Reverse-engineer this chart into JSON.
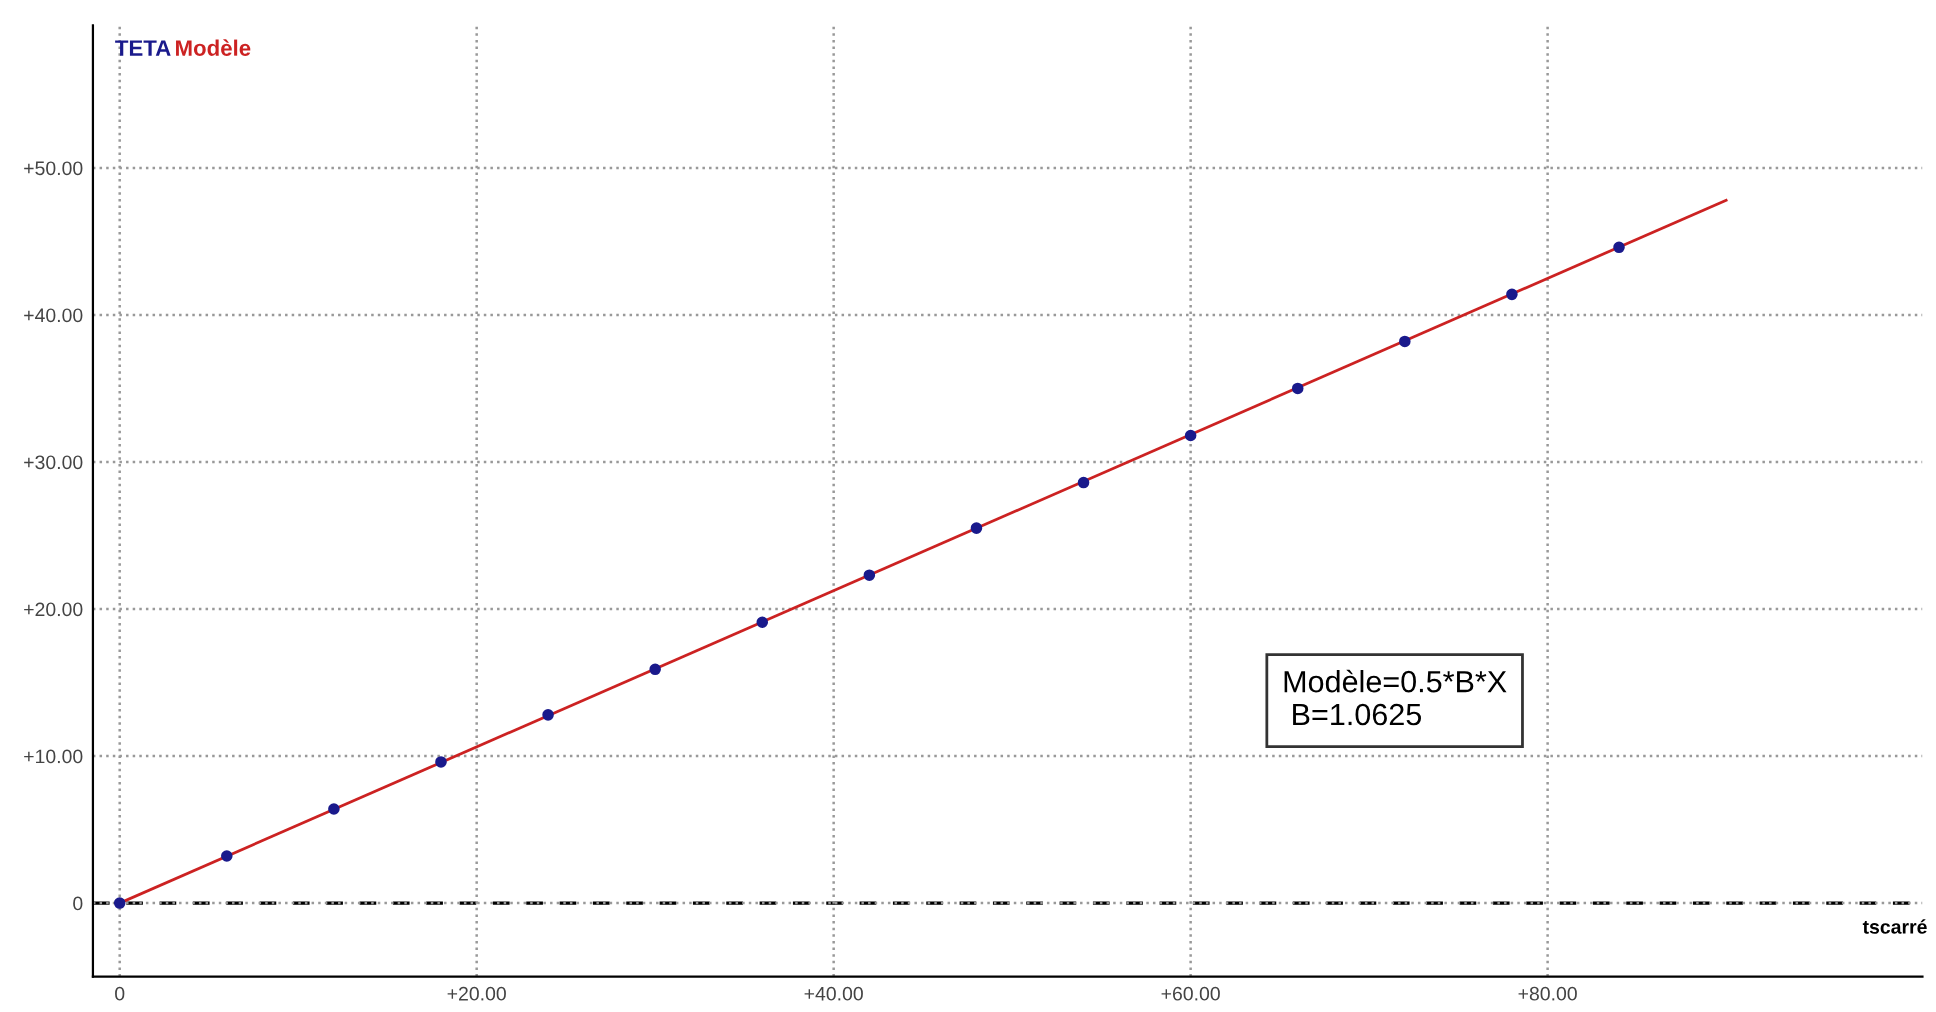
{
  "chart_data": {
    "type": "scatter",
    "xlabel": "tscarré",
    "x": [
      0,
      6,
      12,
      18,
      24,
      30,
      36,
      42,
      48,
      54,
      60,
      66,
      72,
      78,
      84
    ],
    "series": [
      {
        "name": "TETA",
        "color": "#1a1a8c",
        "marker": "circle",
        "values": [
          0,
          3.2,
          6.4,
          9.6,
          12.8,
          15.9,
          19.1,
          22.3,
          25.5,
          28.6,
          31.8,
          35.0,
          38.2,
          41.4,
          44.6
        ]
      },
      {
        "name": "Modèle",
        "color": "#cc2222",
        "type": "line",
        "line_style": "solid",
        "x": [
          0,
          90
        ],
        "values": [
          0,
          47.8
        ]
      }
    ],
    "xlim": [
      -1.5,
      101
    ],
    "ylim": [
      -5,
      59.7
    ],
    "xticks": [
      0,
      {
        "value": 20,
        "label": "+20.00"
      },
      {
        "value": 40,
        "label": "+40.00"
      },
      {
        "value": 60,
        "label": "+60.00"
      },
      {
        "value": 80,
        "label": "+80.00"
      }
    ],
    "yticks": [
      0,
      {
        "value": 10,
        "label": "+10.00"
      },
      {
        "value": 20,
        "label": "+20.00"
      },
      {
        "value": 30,
        "label": "+30.00"
      },
      {
        "value": 40,
        "label": "+40.00"
      },
      {
        "value": 50,
        "label": "+50.00"
      }
    ],
    "grid": true,
    "ref_lines": [
      {
        "axis": "y",
        "value": 0,
        "color": "#000000",
        "line_style": "dashed"
      }
    ],
    "annotations": [
      "Modèle=0.5*B*X\n B=1.0625"
    ]
  }
}
